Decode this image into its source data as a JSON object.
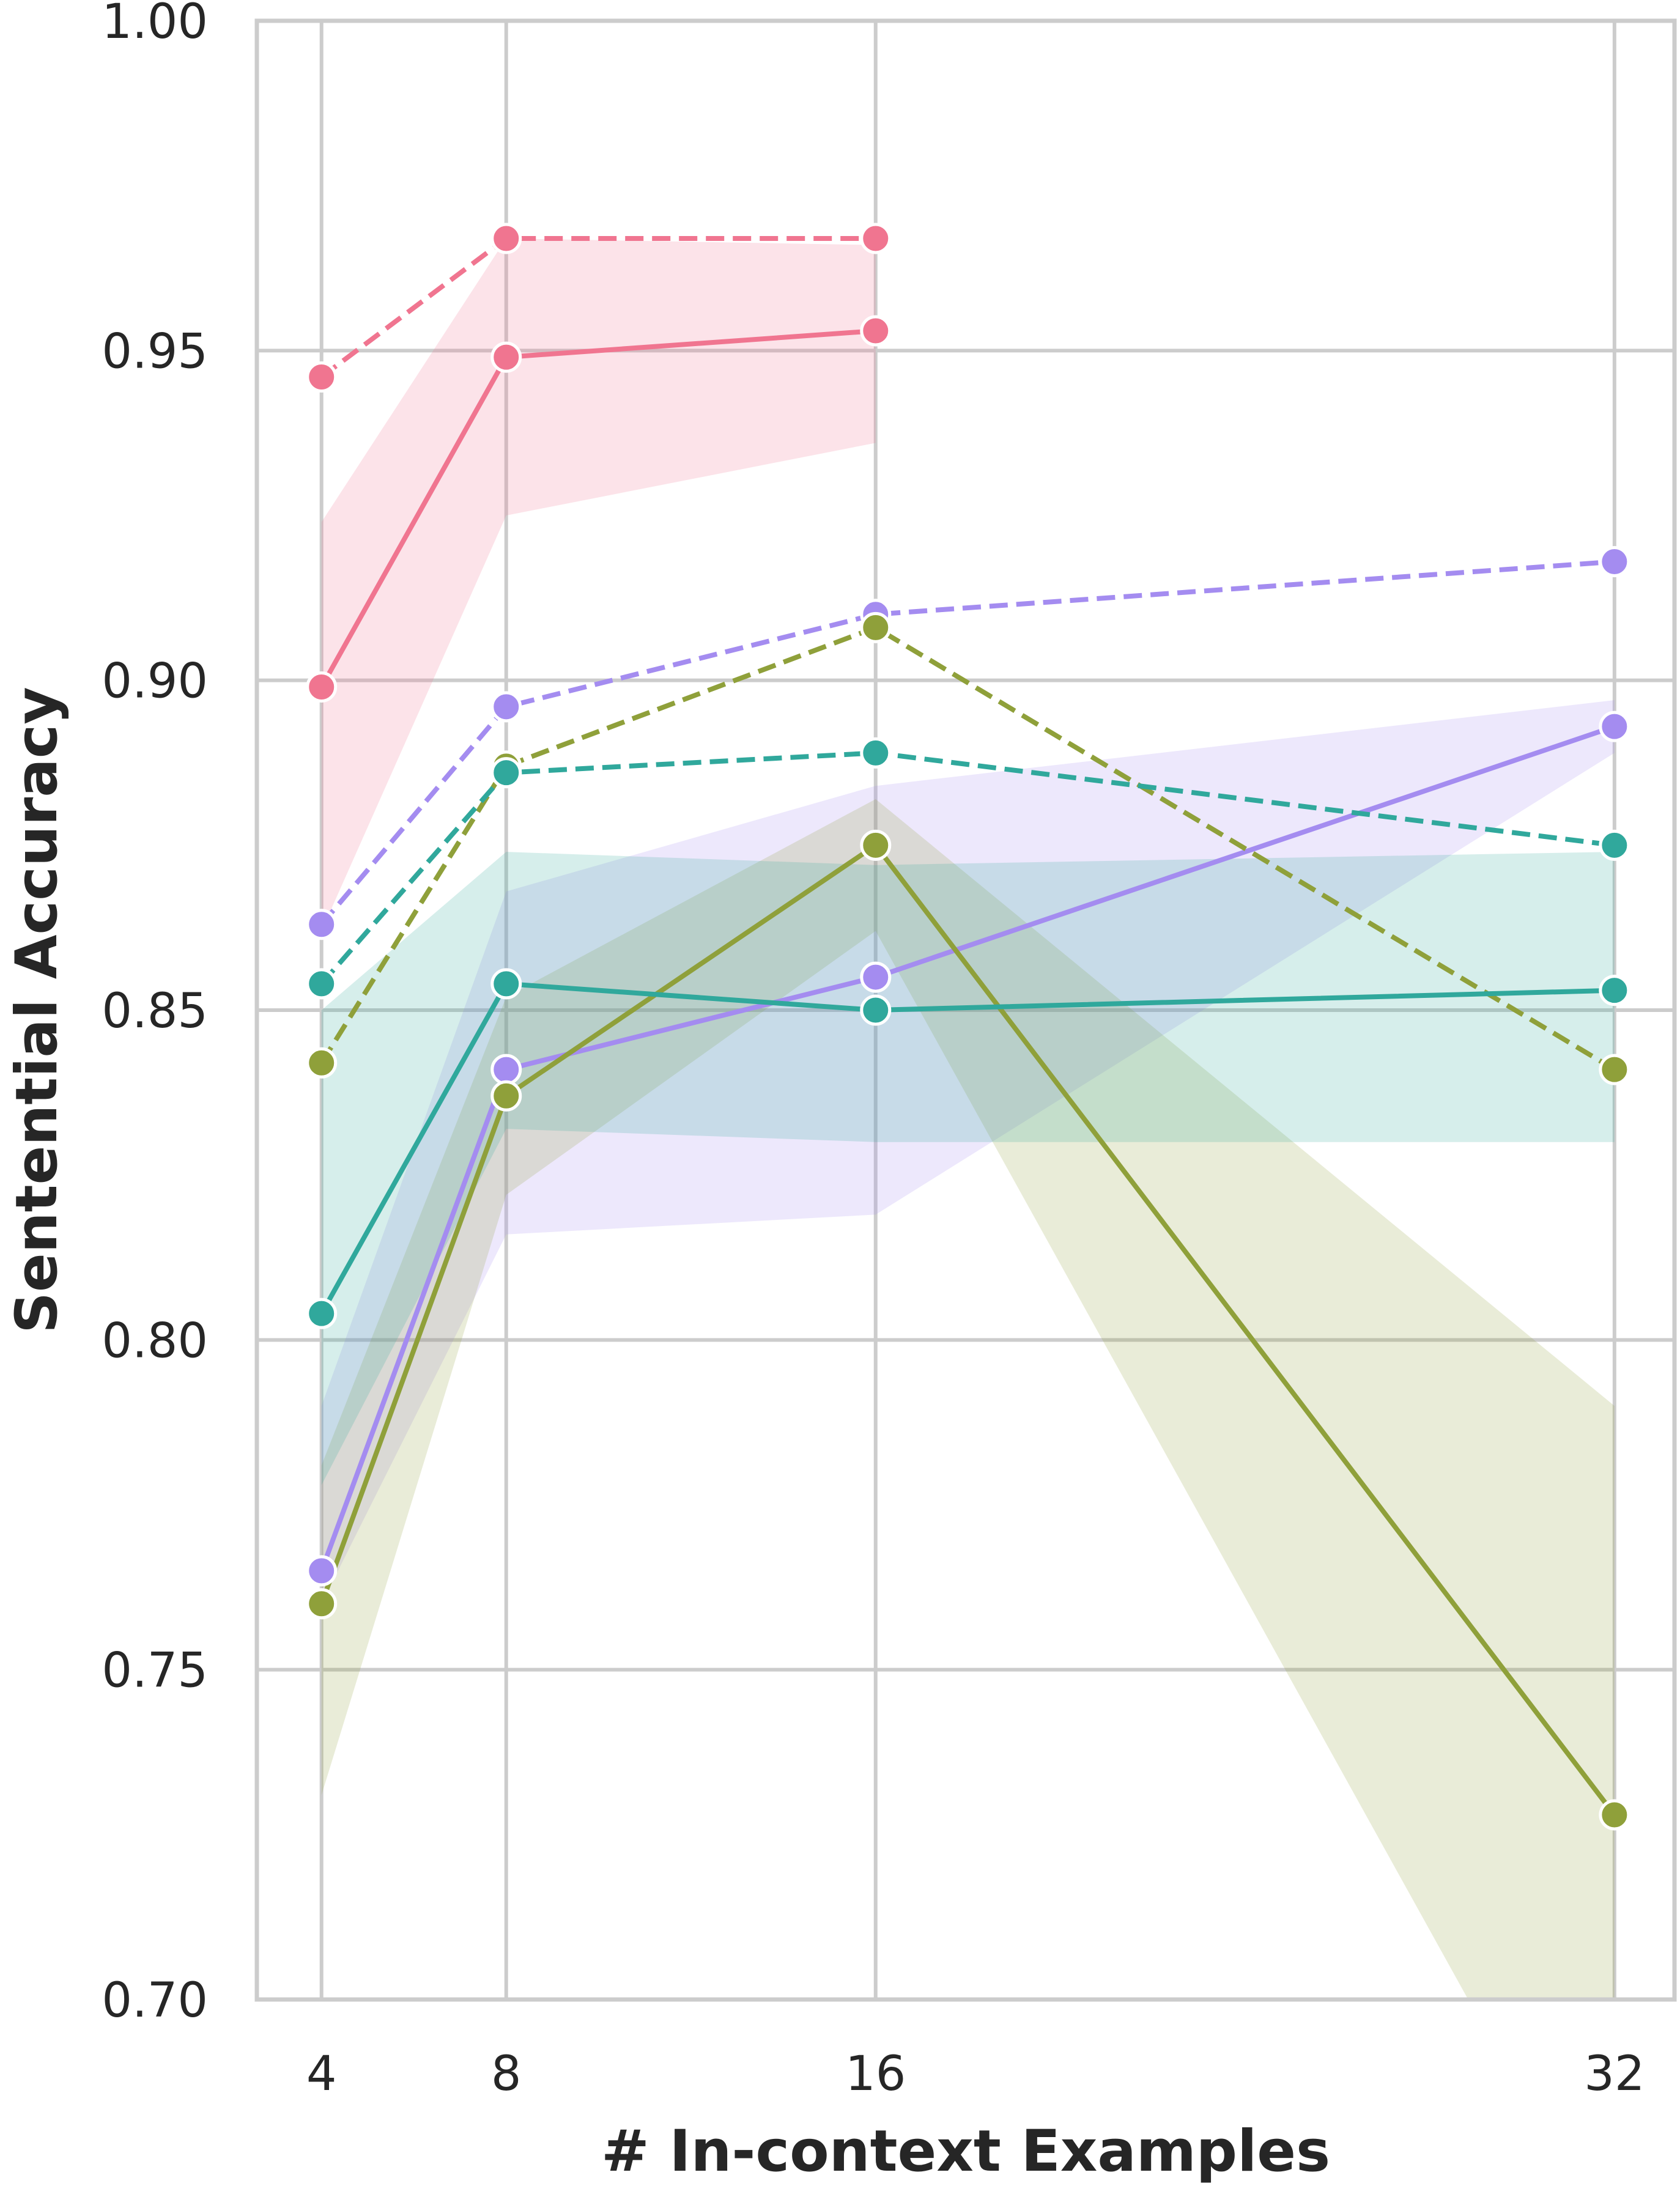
{
  "chart_data": {
    "type": "line",
    "title": "",
    "xlabel": "# In-context Examples",
    "ylabel": "Sentential Accuracy",
    "x_ticks": [
      4,
      8,
      16,
      32
    ],
    "y_ticks": [
      "0.70",
      "0.75",
      "0.80",
      "0.85",
      "0.90",
      "0.95",
      "1.00"
    ],
    "xlim": [
      2.6,
      33.3
    ],
    "ylim": [
      0.7,
      1.0
    ],
    "grid": true,
    "legend": "none",
    "series": [
      {
        "color": "#f07590",
        "style": "dashed",
        "x": [
          4,
          8,
          16
        ],
        "y": [
          0.946,
          0.967,
          0.967
        ]
      },
      {
        "color": "#f07590",
        "style": "solid",
        "x": [
          4,
          8,
          16
        ],
        "y": [
          0.899,
          0.949,
          0.953
        ],
        "band_low": [
          0.862,
          0.925,
          0.936
        ],
        "band_high": [
          0.924,
          0.967,
          0.966
        ]
      },
      {
        "color": "#a48cf0",
        "style": "dashed",
        "x": [
          4,
          8,
          16,
          32
        ],
        "y": [
          0.863,
          0.896,
          0.91,
          0.918
        ]
      },
      {
        "color": "#a48cf0",
        "style": "solid",
        "x": [
          4,
          8,
          16,
          32
        ],
        "y": [
          0.765,
          0.841,
          0.855,
          0.893
        ],
        "band_low": [
          0.76,
          0.816,
          0.819,
          0.889
        ],
        "band_high": [
          0.79,
          0.868,
          0.884,
          0.897
        ]
      },
      {
        "color": "#8fa03a",
        "style": "dashed",
        "x": [
          4,
          8,
          16,
          32
        ],
        "y": [
          0.842,
          0.887,
          0.908,
          0.841
        ]
      },
      {
        "color": "#8fa03a",
        "style": "solid",
        "x": [
          4,
          8,
          16,
          32
        ],
        "y": [
          0.76,
          0.837,
          0.875,
          0.728
        ],
        "band_low": [
          0.731,
          0.822,
          0.862,
          0.66
        ],
        "band_high": [
          0.781,
          0.852,
          0.882,
          0.79
        ]
      },
      {
        "color": "#30a89c",
        "style": "dashed",
        "x": [
          4,
          8,
          16,
          32
        ],
        "y": [
          0.854,
          0.886,
          0.889,
          0.875
        ]
      },
      {
        "color": "#30a89c",
        "style": "solid",
        "x": [
          4,
          8,
          16,
          32
        ],
        "y": [
          0.804,
          0.854,
          0.85,
          0.853
        ],
        "band_low": [
          0.778,
          0.832,
          0.83,
          0.83
        ],
        "band_high": [
          0.85,
          0.874,
          0.872,
          0.874
        ]
      }
    ]
  }
}
